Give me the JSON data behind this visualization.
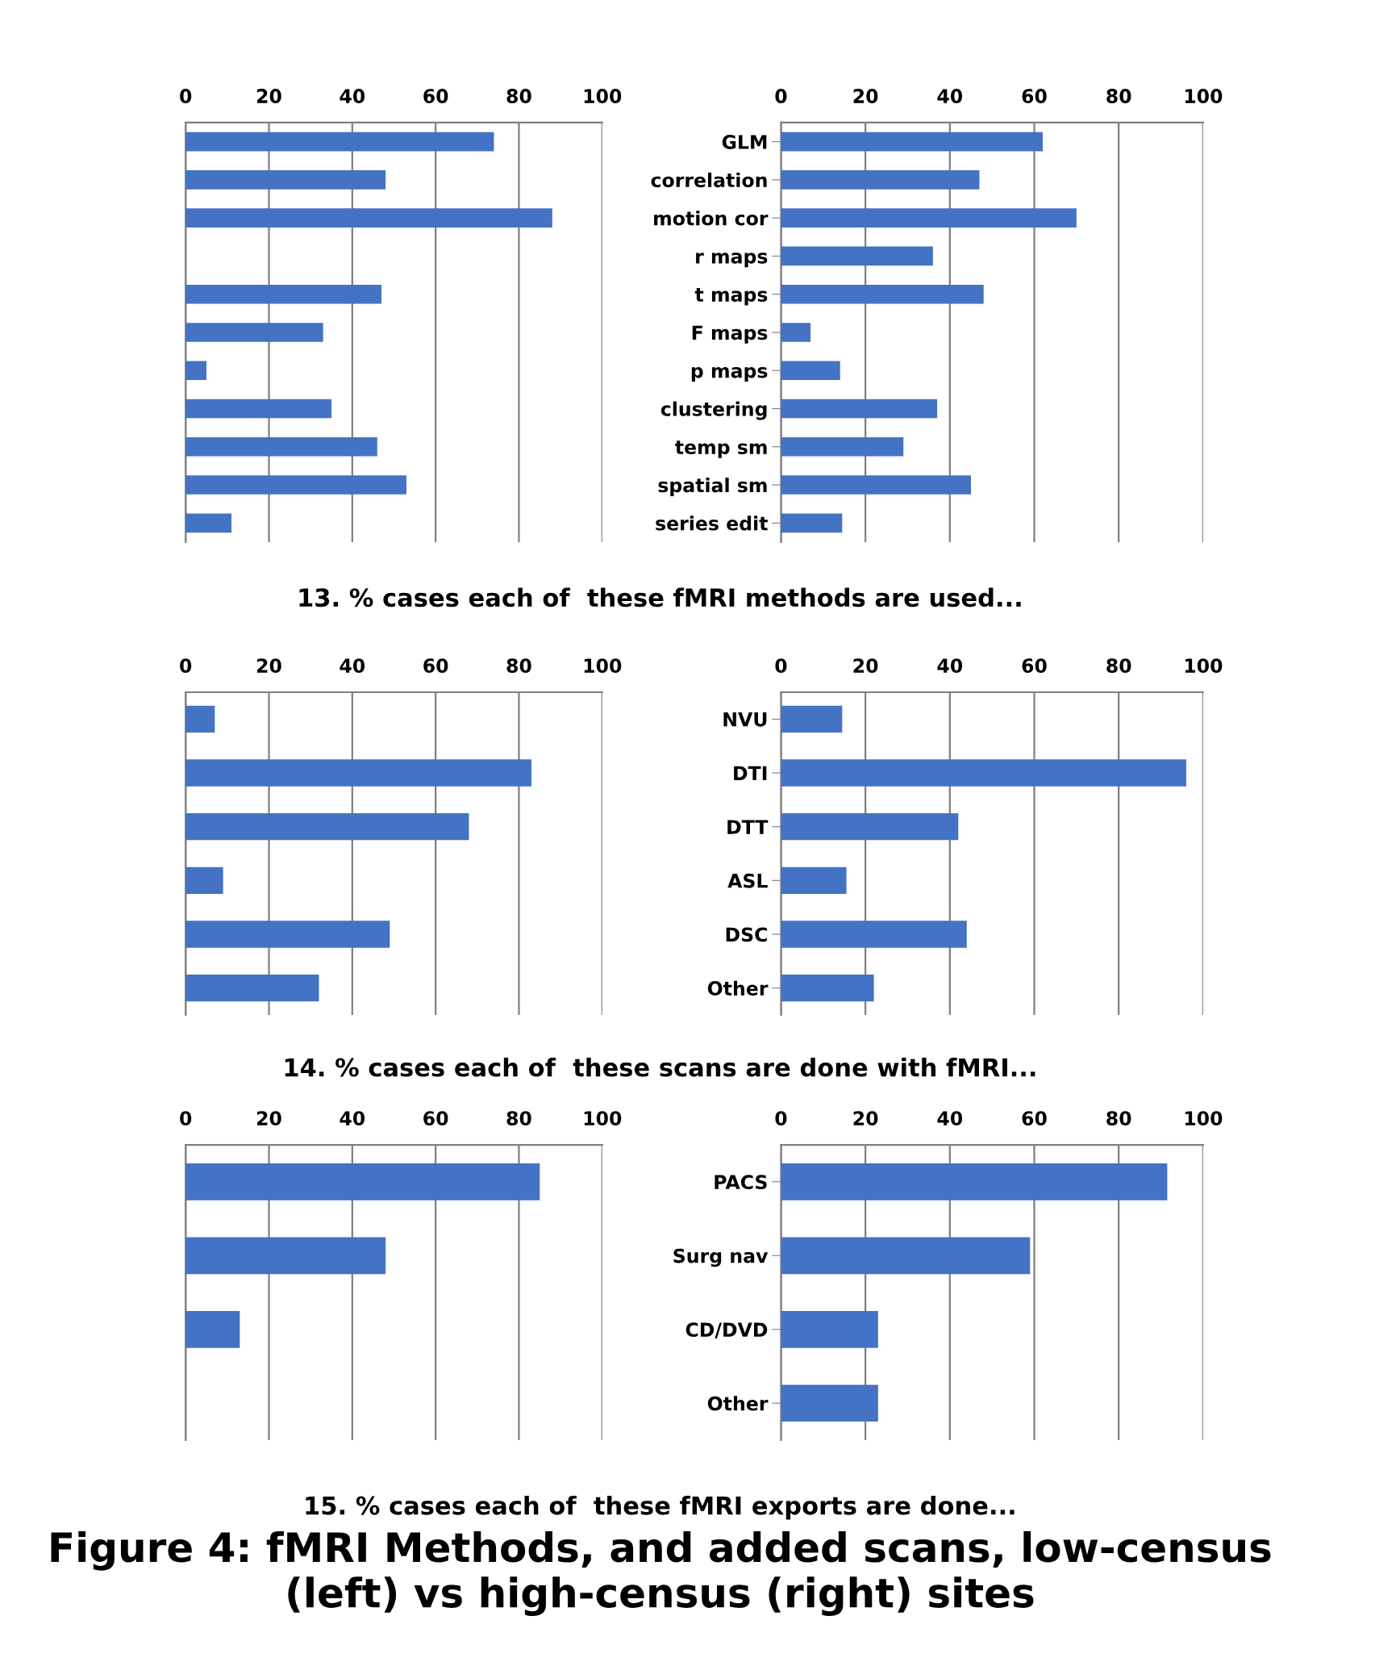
{
  "chart_data": [
    {
      "type": "bar",
      "orientation": "horizontal",
      "categories": [
        null,
        null,
        null,
        null,
        null,
        null,
        null,
        null,
        null,
        null,
        null
      ],
      "values": [
        74,
        48,
        88,
        null,
        47,
        33,
        5,
        35,
        46,
        53,
        11
      ],
      "color": "#4472c4",
      "xlim": [
        0,
        100
      ],
      "xticks": [
        0,
        20,
        40,
        60,
        80,
        100
      ],
      "grid": "x",
      "tick_labels": "x",
      "annotations": [
        "13. % cases each of  these fMRI methods are used..."
      ]
    },
    {
      "type": "bar",
      "orientation": "horizontal",
      "categories": [
        "GLM",
        "correlation",
        "motion cor",
        "r maps",
        "t maps",
        "F maps",
        "p maps",
        "clustering",
        "temp sm",
        "spatial sm",
        "series edit"
      ],
      "values": [
        62,
        47,
        70,
        36,
        48,
        7,
        14,
        37,
        29,
        45,
        14.5
      ],
      "color": "#4472c4",
      "xlim": [
        0,
        100
      ],
      "xticks": [
        0,
        20,
        40,
        60,
        80,
        100
      ],
      "grid": "x"
    },
    {
      "type": "bar",
      "orientation": "horizontal",
      "categories": [
        null,
        null,
        null,
        null,
        null,
        null
      ],
      "values": [
        7,
        83,
        68,
        9,
        49,
        32
      ],
      "color": "#4472c4",
      "xlim": [
        0,
        100
      ],
      "xticks": [
        0,
        20,
        40,
        60,
        80,
        100
      ],
      "grid": "x",
      "tick_labels": "x",
      "annotations": [
        "14. % cases each of  these scans are done with fMRI..."
      ]
    },
    {
      "type": "bar",
      "orientation": "horizontal",
      "categories": [
        "NVU",
        "DTI",
        "DTT",
        "ASL",
        "DSC",
        "Other"
      ],
      "values": [
        14.5,
        96,
        42,
        15.5,
        44,
        22
      ],
      "color": "#4472c4",
      "xlim": [
        0,
        100
      ],
      "xticks": [
        0,
        20,
        40,
        60,
        80,
        100
      ],
      "grid": "x"
    },
    {
      "type": "bar",
      "orientation": "horizontal",
      "categories": [
        null,
        null,
        null,
        null
      ],
      "values": [
        85,
        48,
        13,
        null
      ],
      "color": "#4472c4",
      "xlim": [
        0,
        100
      ],
      "xticks": [
        0,
        20,
        40,
        60,
        80,
        100
      ],
      "grid": "x",
      "tick_labels": "x",
      "annotations": [
        "15. % cases each of  these fMRI exports are done..."
      ]
    },
    {
      "type": "bar",
      "orientation": "horizontal",
      "categories": [
        "PACS",
        "Surg nav",
        "CD/DVD",
        "Other"
      ],
      "values": [
        91.5,
        59,
        23,
        23
      ],
      "color": "#4472c4",
      "xlim": [
        0,
        100
      ],
      "xticks": [
        0,
        20,
        40,
        60,
        80,
        100
      ],
      "grid": "x",
      "annotations": [
        "Figure 4: fMRI Methods, and added scans, low-census (left) vs high-census (right) sites"
      ]
    }
  ]
}
